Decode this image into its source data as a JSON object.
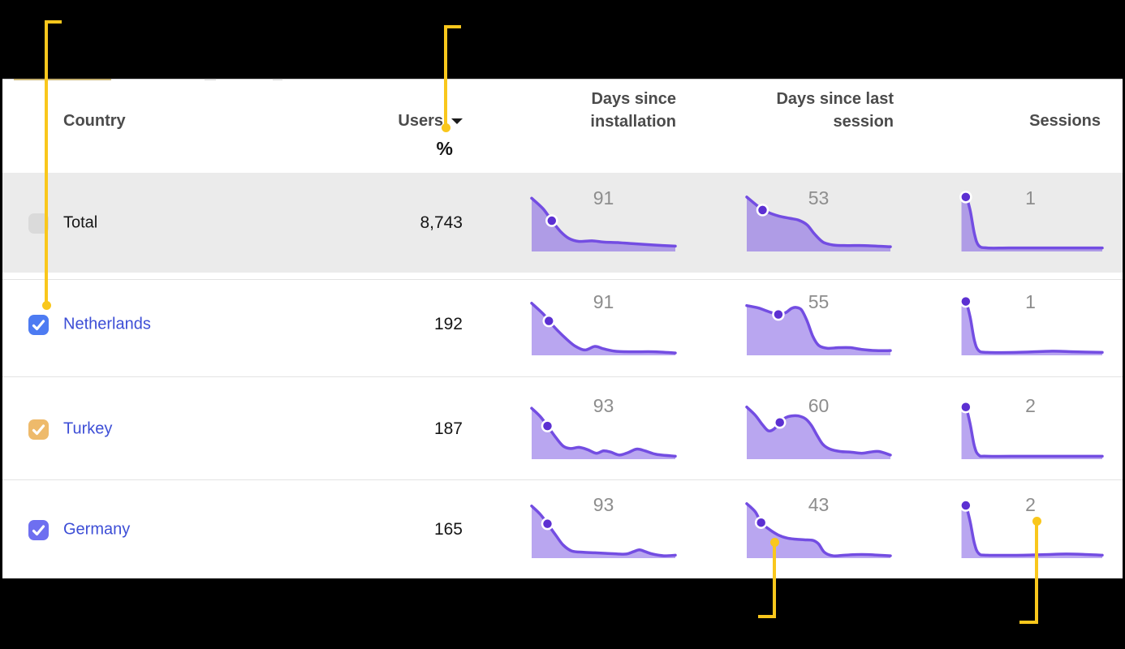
{
  "page": {
    "background": "#000000"
  },
  "header": {
    "country": "Country",
    "users": "Users",
    "users_percent": "%",
    "days_since_installation": "Days since\ninstallation",
    "days_since_last_session": "Days since last\nsession",
    "sessions": "Sessions",
    "sort_icon": "caret-down-icon on Users column"
  },
  "colors": {
    "panel_bg": "#ffffff",
    "total_row_bg": "#ebebeb",
    "header_text": "#4b4b4b",
    "body_text": "#161616",
    "link_text": "#3d4ed6",
    "chart_label": "#8d8d8d",
    "spark_stroke": "#734de2",
    "spark_fill": "rgba(115,77,226,0.5)",
    "spark_dot": "#5c30d2",
    "annotation_yellow": "#f9c71c",
    "checkbox_disabled": "#dadada",
    "checkbox_netherlands": "#4d7bf2",
    "checkbox_turkey": "#eeba6b",
    "checkbox_germany": "#6e6ff0",
    "separator": "#e3e3e3"
  },
  "chart_data": {
    "type": "area",
    "description": "Per-row sparkline area charts (distribution curves); numeric label above each sparkline is the highlighted value; points are normalized [x 0-100, y 0-100 from top], dot marks highlighted point",
    "columns": [
      "Days since installation",
      "Days since last session",
      "Sessions"
    ],
    "rows": [
      {
        "country": "Total",
        "users": "8,743",
        "checkbox": "disabled",
        "checkbox_color": null,
        "charts": [
          {
            "label": "91",
            "dot": [
              14,
              48
            ],
            "points": [
              [
                0,
                10
              ],
              [
                8,
                28
              ],
              [
                14,
                48
              ],
              [
                20,
                66
              ],
              [
                26,
                78
              ],
              [
                33,
                83
              ],
              [
                42,
                82
              ],
              [
                50,
                84
              ],
              [
                60,
                85
              ],
              [
                72,
                87
              ],
              [
                85,
                89
              ],
              [
                100,
                91
              ]
            ]
          },
          {
            "label": "53",
            "dot": [
              11,
              30
            ],
            "points": [
              [
                0,
                8
              ],
              [
                8,
                24
              ],
              [
                14,
                33
              ],
              [
                22,
                40
              ],
              [
                30,
                44
              ],
              [
                36,
                47
              ],
              [
                42,
                55
              ],
              [
                47,
                70
              ],
              [
                53,
                84
              ],
              [
                60,
                89
              ],
              [
                70,
                90
              ],
              [
                82,
                90
              ],
              [
                100,
                92
              ]
            ]
          },
          {
            "label": "1",
            "dot": [
              5,
              8
            ],
            "points": [
              [
                2,
                8
              ],
              [
                5,
                7
              ],
              [
                8,
                30
              ],
              [
                11,
                70
              ],
              [
                14,
                90
              ],
              [
                20,
                94
              ],
              [
                35,
                94
              ],
              [
                60,
                94
              ],
              [
                100,
                94
              ]
            ]
          }
        ]
      },
      {
        "country": "Netherlands",
        "users": "192",
        "checkbox": "checked",
        "checkbox_color": "#4d7bf2",
        "charts": [
          {
            "label": "91",
            "dot": [
              12,
              42
            ],
            "points": [
              [
                0,
                12
              ],
              [
                8,
                30
              ],
              [
                12,
                42
              ],
              [
                18,
                58
              ],
              [
                24,
                72
              ],
              [
                30,
                84
              ],
              [
                37,
                91
              ],
              [
                44,
                85
              ],
              [
                50,
                89
              ],
              [
                58,
                93
              ],
              [
                70,
                94
              ],
              [
                85,
                94
              ],
              [
                100,
                96
              ]
            ]
          },
          {
            "label": "55",
            "dot": [
              22,
              31
            ],
            "points": [
              [
                0,
                16
              ],
              [
                8,
                20
              ],
              [
                15,
                26
              ],
              [
                22,
                31
              ],
              [
                27,
                28
              ],
              [
                31,
                21
              ],
              [
                34,
                19
              ],
              [
                38,
                23
              ],
              [
                42,
                42
              ],
              [
                46,
                68
              ],
              [
                50,
                83
              ],
              [
                56,
                88
              ],
              [
                64,
                87
              ],
              [
                72,
                87
              ],
              [
                80,
                90
              ],
              [
                90,
                92
              ],
              [
                100,
                92
              ]
            ]
          },
          {
            "label": "1",
            "dot": [
              5,
              9
            ],
            "points": [
              [
                2,
                10
              ],
              [
                5,
                9
              ],
              [
                8,
                35
              ],
              [
                11,
                75
              ],
              [
                14,
                92
              ],
              [
                20,
                95
              ],
              [
                40,
                95
              ],
              [
                65,
                93
              ],
              [
                80,
                94
              ],
              [
                100,
                95
              ]
            ]
          }
        ]
      },
      {
        "country": "Turkey",
        "users": "187",
        "checkbox": "checked",
        "checkbox_color": "#eeba6b",
        "charts": [
          {
            "label": "93",
            "dot": [
              11,
              44
            ],
            "points": [
              [
                0,
                14
              ],
              [
                6,
                28
              ],
              [
                11,
                44
              ],
              [
                17,
                64
              ],
              [
                22,
                78
              ],
              [
                27,
                82
              ],
              [
                33,
                80
              ],
              [
                39,
                84
              ],
              [
                45,
                90
              ],
              [
                50,
                86
              ],
              [
                55,
                88
              ],
              [
                61,
                93
              ],
              [
                67,
                89
              ],
              [
                73,
                83
              ],
              [
                79,
                86
              ],
              [
                87,
                92
              ],
              [
                100,
                95
              ]
            ]
          },
          {
            "label": "60",
            "dot": [
              23,
              38
            ],
            "points": [
              [
                0,
                12
              ],
              [
                6,
                26
              ],
              [
                11,
                42
              ],
              [
                15,
                52
              ],
              [
                19,
                49
              ],
              [
                23,
                38
              ],
              [
                27,
                30
              ],
              [
                31,
                27
              ],
              [
                36,
                27
              ],
              [
                41,
                32
              ],
              [
                45,
                43
              ],
              [
                49,
                60
              ],
              [
                53,
                75
              ],
              [
                58,
                83
              ],
              [
                65,
                87
              ],
              [
                72,
                88
              ],
              [
                80,
                90
              ],
              [
                86,
                88
              ],
              [
                92,
                87
              ],
              [
                100,
                93
              ]
            ]
          },
          {
            "label": "2",
            "dot": [
              5,
              12
            ],
            "points": [
              [
                2,
                12
              ],
              [
                5,
                12
              ],
              [
                8,
                40
              ],
              [
                11,
                78
              ],
              [
                14,
                93
              ],
              [
                20,
                95
              ],
              [
                50,
                95
              ],
              [
                100,
                95
              ]
            ]
          }
        ]
      },
      {
        "country": "Germany",
        "users": "165",
        "checkbox": "checked",
        "checkbox_color": "#6e6ff0",
        "charts": [
          {
            "label": "93",
            "dot": [
              11,
              42
            ],
            "points": [
              [
                0,
                12
              ],
              [
                6,
                26
              ],
              [
                11,
                42
              ],
              [
                17,
                62
              ],
              [
                22,
                78
              ],
              [
                28,
                88
              ],
              [
                36,
                90
              ],
              [
                44,
                91
              ],
              [
                52,
                92
              ],
              [
                60,
                93
              ],
              [
                66,
                93
              ],
              [
                71,
                89
              ],
              [
                75,
                86
              ],
              [
                79,
                89
              ],
              [
                84,
                93
              ],
              [
                92,
                96
              ],
              [
                100,
                95
              ]
            ]
          },
          {
            "label": "43",
            "dot": [
              10,
              40
            ],
            "points": [
              [
                0,
                8
              ],
              [
                6,
                22
              ],
              [
                10,
                40
              ],
              [
                16,
                52
              ],
              [
                22,
                61
              ],
              [
                28,
                66
              ],
              [
                34,
                68
              ],
              [
                40,
                69
              ],
              [
                46,
                70
              ],
              [
                50,
                76
              ],
              [
                54,
                90
              ],
              [
                60,
                96
              ],
              [
                68,
                95
              ],
              [
                76,
                94
              ],
              [
                84,
                94
              ],
              [
                92,
                95
              ],
              [
                100,
                96
              ]
            ]
          },
          {
            "label": "2",
            "dot": [
              5,
              11
            ],
            "points": [
              [
                2,
                10
              ],
              [
                5,
                11
              ],
              [
                8,
                38
              ],
              [
                11,
                75
              ],
              [
                14,
                92
              ],
              [
                20,
                95
              ],
              [
                45,
                95
              ],
              [
                60,
                94
              ],
              [
                75,
                93
              ],
              [
                90,
                94
              ],
              [
                100,
                95
              ]
            ]
          }
        ]
      }
    ]
  }
}
